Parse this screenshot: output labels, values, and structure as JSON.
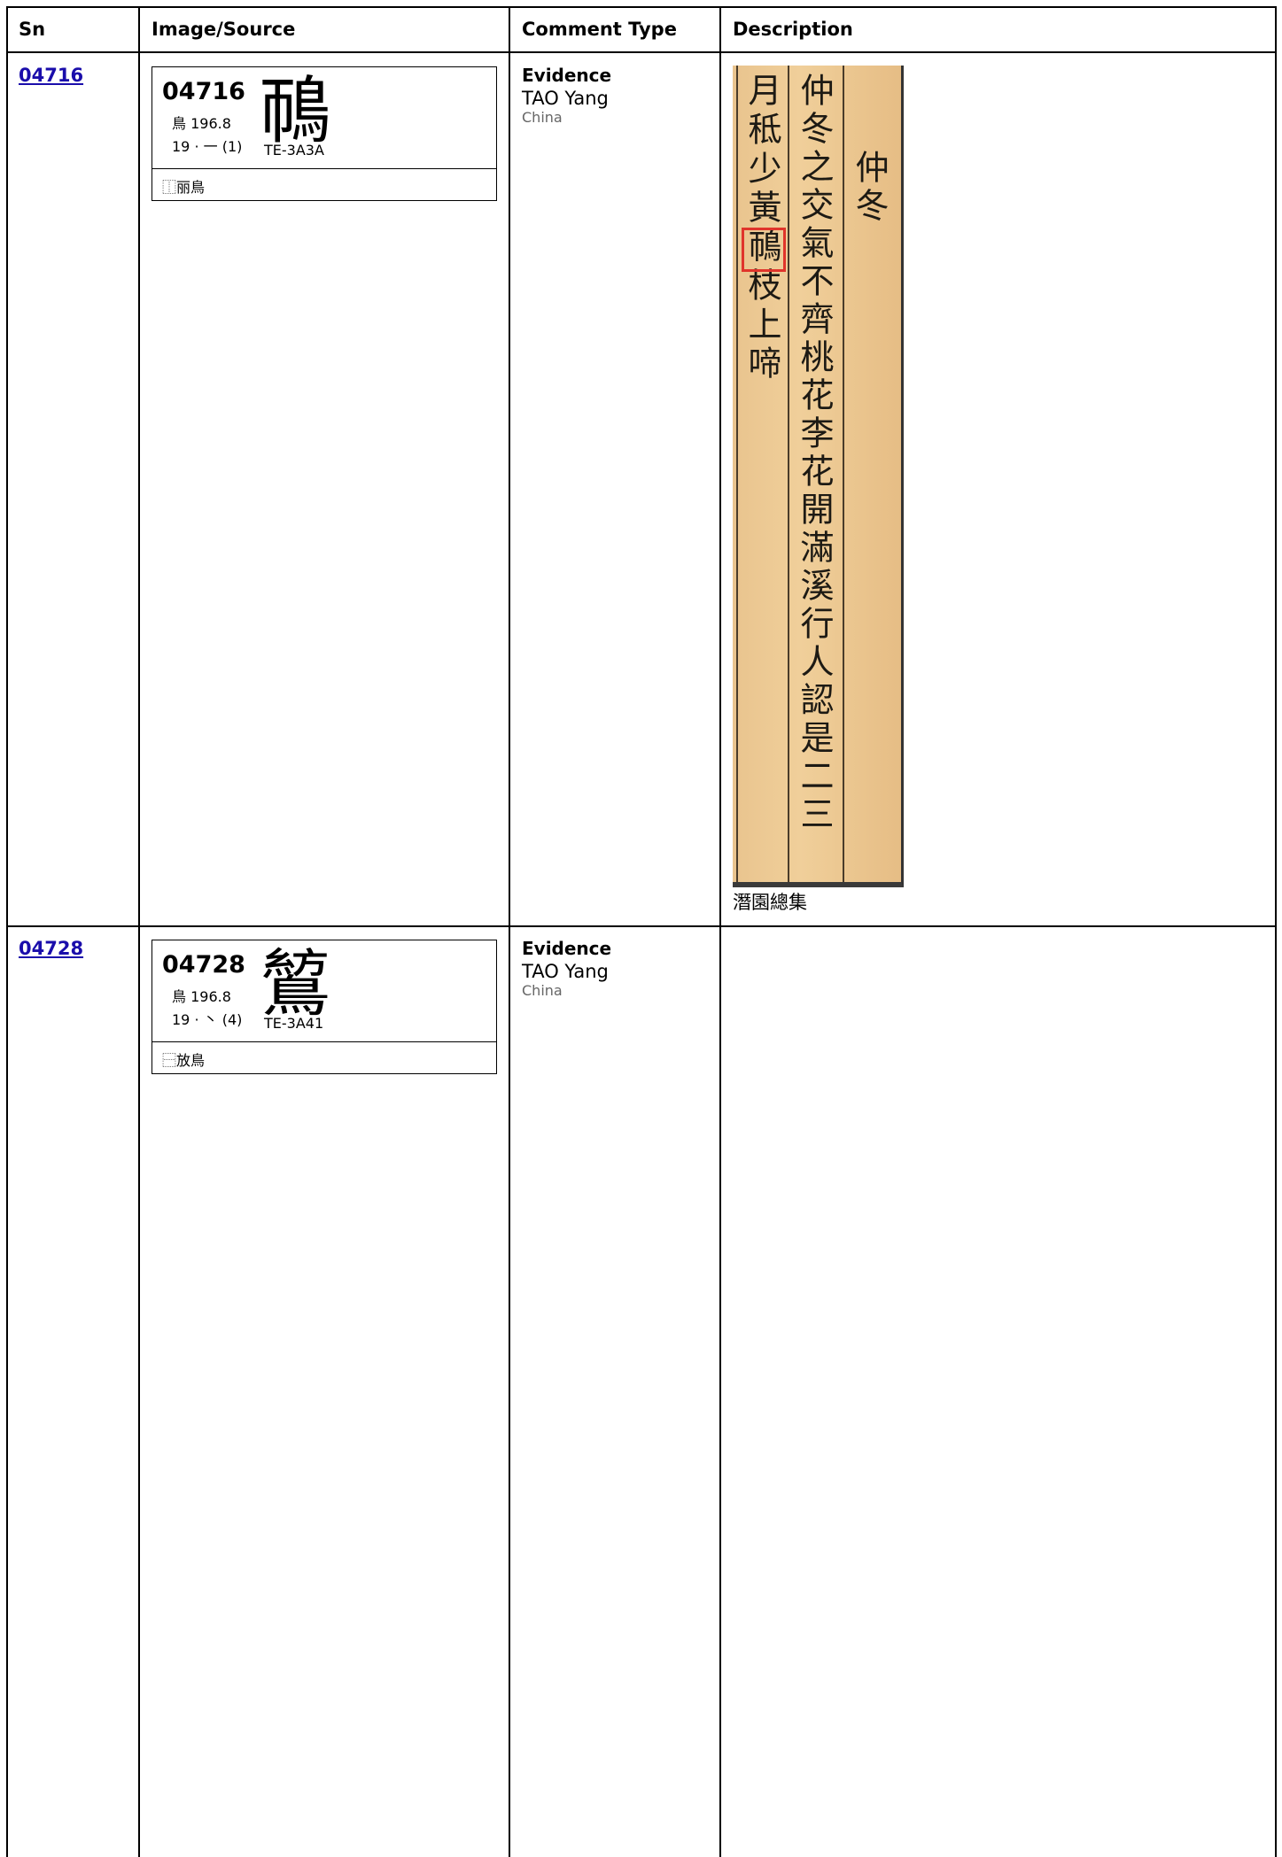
{
  "table": {
    "headers": [
      "Sn",
      "Image/Source",
      "Comment Type",
      "Description"
    ],
    "rows": [
      {
        "sn": "04716",
        "code": "04716",
        "radical": "鳥 196.8",
        "strokes": "19 · 一 (1)",
        "glyph": "鳾",
        "source_ref": "TE-3A3A",
        "ids": "⿰丽鳥",
        "comment_type": "Evidence",
        "author": "TAO Yang",
        "country": "China",
        "image_columns": [
          "仲冬",
          "仲冬之交氣不齊桃花李花開滿溪行人認是二三",
          "月秪少黃鳾枝上啼"
        ],
        "caption": "潛園總集"
      },
      {
        "sn": "04728",
        "code": "04728",
        "radical": "鳥 196.8",
        "strokes": "19 · 丶 (4)",
        "glyph": "鶭",
        "source_ref": "TE-3A41",
        "ids": "⿱放鳥",
        "comment_type": "Evidence",
        "author": "TAO Yang",
        "country": "China"
      }
    ]
  }
}
